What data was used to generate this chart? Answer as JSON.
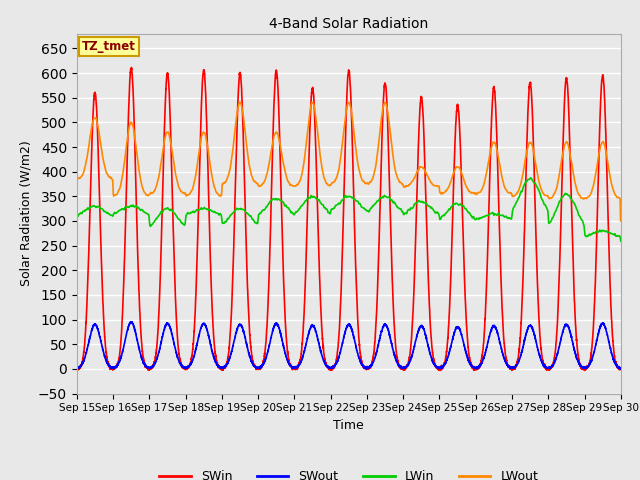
{
  "title": "4-Band Solar Radiation",
  "xlabel": "Time",
  "ylabel": "Solar Radiation (W/m2)",
  "ylim": [
    -50,
    680
  ],
  "background_color": "#e8e8e8",
  "plot_bg_color": "#e8e8e8",
  "grid_color": "#ffffff",
  "annotation_text": "TZ_tmet",
  "annotation_bg": "#ffff99",
  "annotation_border": "#cc9900",
  "line_colors": {
    "SWin": "#ff0000",
    "SWout": "#0000ff",
    "LWin": "#00cc00",
    "LWout": "#ff8800"
  },
  "n_days": 15,
  "points_per_day": 288,
  "SWin_peaks": [
    560,
    610,
    600,
    605,
    600,
    605,
    570,
    605,
    580,
    550,
    535,
    570,
    580,
    590,
    595
  ],
  "SWout_peaks": [
    90,
    95,
    92,
    92,
    90,
    92,
    88,
    90,
    90,
    87,
    85,
    87,
    88,
    90,
    92
  ],
  "LWin_base": [
    305,
    310,
    280,
    310,
    285,
    305,
    305,
    315,
    310,
    305,
    295,
    300,
    305,
    275,
    265
  ],
  "LWin_bump": [
    25,
    20,
    45,
    15,
    40,
    40,
    45,
    35,
    40,
    35,
    40,
    15,
    80,
    80,
    15
  ],
  "LWout_base": [
    385,
    350,
    355,
    350,
    375,
    370,
    370,
    375,
    375,
    370,
    355,
    355,
    350,
    345,
    345
  ],
  "LWout_peaks": [
    510,
    500,
    480,
    480,
    540,
    480,
    540,
    540,
    540,
    410,
    410,
    460,
    460,
    460,
    460
  ]
}
